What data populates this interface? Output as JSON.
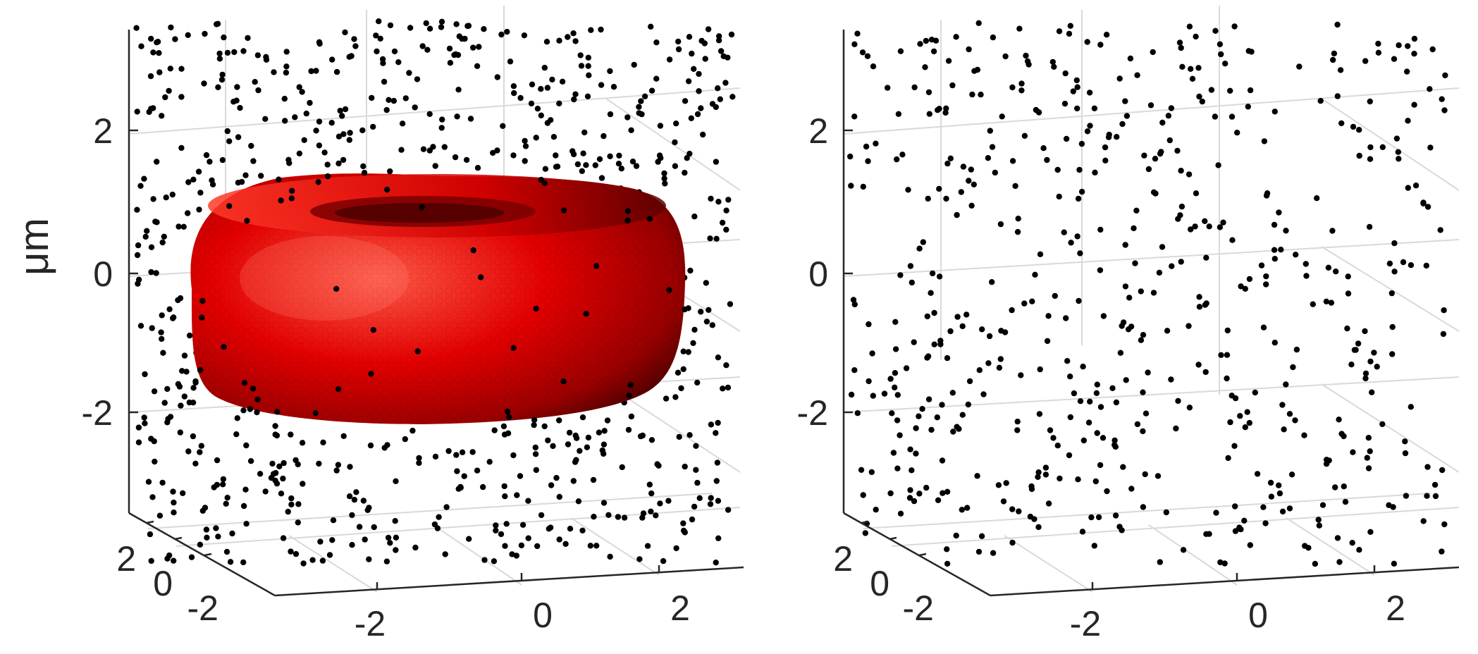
{
  "chart_data": [
    {
      "type": "scatter",
      "title": "",
      "subtitle": "",
      "zlabel": "μm",
      "xlabel": "",
      "ylabel": "",
      "x_ticks": [
        "-2",
        "0",
        "2"
      ],
      "y_ticks": [
        "2",
        "0",
        "-2"
      ],
      "z_ticks": [
        "2",
        "0",
        "-2"
      ],
      "xlim": [
        -3.5,
        3.5
      ],
      "ylim": [
        -3.5,
        3.5
      ],
      "zlim": [
        -3.5,
        3.5
      ],
      "grid": true,
      "point_count": 700,
      "point_seed": 17,
      "exclude_region": "red blood cell (torus)",
      "surface": {
        "shape": "torus",
        "major_radius": 2.6,
        "minor_radius": 0.9,
        "center": [
          0,
          0,
          0
        ]
      },
      "series": [
        {
          "color": "#000000",
          "marker": "dot"
        }
      ]
    },
    {
      "type": "scatter",
      "title": "",
      "subtitle": "",
      "zlabel": "",
      "xlabel": "",
      "ylabel": "",
      "x_ticks": [
        "-2",
        "0",
        "2"
      ],
      "y_ticks": [
        "2",
        "0",
        "-2"
      ],
      "z_ticks": [
        "2",
        "0",
        "-2"
      ],
      "xlim": [
        -3.5,
        3.5
      ],
      "ylim": [
        -3.5,
        3.5
      ],
      "zlim": [
        -3.5,
        3.5
      ],
      "grid": true,
      "point_count": 560,
      "point_seed": 91,
      "exclude_region": "none",
      "series": [
        {
          "color": "#000000",
          "marker": "dot"
        }
      ]
    }
  ],
  "colors": {
    "torus_light": "#ff4a3a",
    "torus_mid": "#e40000",
    "torus_dark": "#3a0000",
    "grid": "#d9d9d9",
    "axis": "#262626",
    "points": "#000000"
  }
}
